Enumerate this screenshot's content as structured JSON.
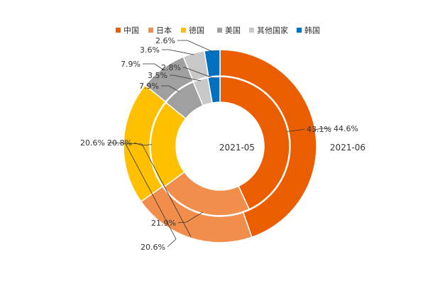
{
  "chart_data": {
    "type": "pie",
    "variant": "nested-donut",
    "categories": [
      "中国",
      "日本",
      "德国",
      "美国",
      "其他国家",
      "韩国"
    ],
    "colors": [
      "#eb5e00",
      "#f28e4b",
      "#ffc000",
      "#a0a0a0",
      "#c8c8c8",
      "#0070c0"
    ],
    "legend_position": "top",
    "series": [
      {
        "name": "2021-05",
        "ring": "inner",
        "values": [
          43.1,
          21.9,
          20.8,
          7.9,
          3.5,
          2.8
        ],
        "labels": [
          "43.1%",
          "21.9%",
          "20.8%",
          "7.9%",
          "3.5%",
          "2.8%"
        ]
      },
      {
        "name": "2021-06",
        "ring": "outer",
        "values": [
          44.6,
          20.6,
          20.6,
          7.9,
          3.6,
          2.6
        ],
        "labels": [
          "44.6%",
          "20.6%",
          "20.6%",
          "7.9%",
          "3.6%",
          "2.6%"
        ]
      }
    ]
  }
}
